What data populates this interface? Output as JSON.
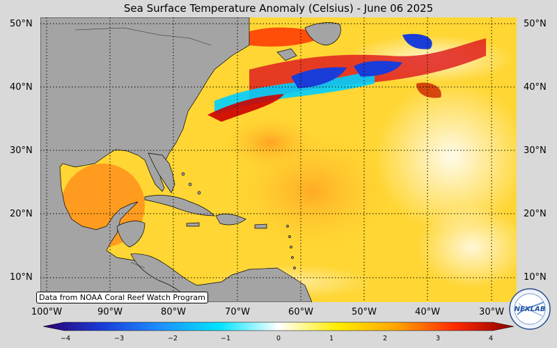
{
  "title": "Sea Surface Temperature Anomaly (Celsius) - June 06 2025",
  "credit": "Data from NOAA Coral Reef Watch Program",
  "lat_labels": [
    "50°N",
    "40°N",
    "30°N",
    "20°N",
    "10°N"
  ],
  "lon_labels": [
    "100°W",
    "90°W",
    "80°W",
    "70°W",
    "60°W",
    "50°W",
    "40°W",
    "30°W"
  ],
  "colorbar": {
    "ticks": [
      "−4",
      "−3",
      "−2",
      "−1",
      "0",
      "1",
      "2",
      "3",
      "4"
    ],
    "range": [
      -4,
      4
    ],
    "colors": [
      "#2a006e",
      "#1a3cd8",
      "#1e90ff",
      "#00e5ff",
      "#ffffff",
      "#ffee00",
      "#ffa500",
      "#ff2a00",
      "#8b0000"
    ]
  },
  "colors": {
    "land": "#a4a4a4",
    "background": "#d9d9d9",
    "warm": "#ffcc33",
    "cold": "#1a3cd8"
  },
  "logo_text": "NEXLAB"
}
